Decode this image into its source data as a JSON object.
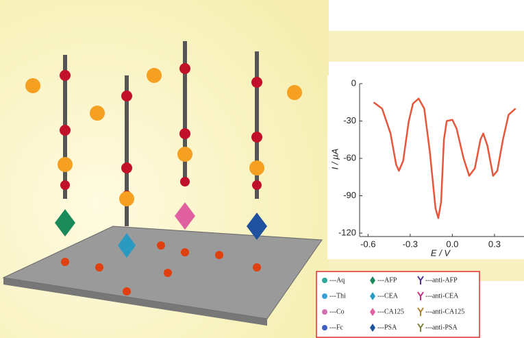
{
  "chart_data": {
    "type": "line",
    "x_label": "E / V",
    "y_label": "I / µA",
    "x": [
      -0.56,
      -0.5,
      -0.44,
      -0.4,
      -0.38,
      -0.35,
      -0.31,
      -0.28,
      -0.24,
      -0.2,
      -0.16,
      -0.12,
      -0.1,
      -0.08,
      -0.06,
      -0.04,
      0.0,
      0.03,
      0.08,
      0.12,
      0.16,
      0.2,
      0.22,
      0.25,
      0.29,
      0.32,
      0.36,
      0.4,
      0.45
    ],
    "values": [
      -15,
      -20,
      -40,
      -65,
      -70,
      -62,
      -30,
      -16,
      -12,
      -20,
      -55,
      -100,
      -108,
      -95,
      -45,
      -30,
      -29,
      -36,
      -60,
      -74,
      -68,
      -45,
      -40,
      -50,
      -74,
      -70,
      -45,
      -25,
      -20
    ],
    "color": "#e8553a",
    "xlim": [
      -0.66,
      0.51
    ],
    "xticks": [
      -0.6,
      -0.3,
      {
        "value": 0,
        "label": "0.0"
      },
      0.3
    ],
    "ylim": [
      -120,
      0
    ],
    "yticks": [
      0,
      -30,
      -60,
      -90,
      -120
    ]
  },
  "legend": {
    "items": [
      "---Aq",
      "---Thi",
      "---Co",
      "---Fc",
      "---AFP",
      "---CEA",
      "---CA125",
      "---PSA",
      "---anti-AFP",
      "---anti-CEA",
      "---anti-CA125",
      "---anti-PSA"
    ],
    "colors": [
      "#2fa89a",
      "#3a9fd0",
      "#d070b0",
      "#4060c0",
      "#1a8a5a",
      "#2a9ac0",
      "#e060a0",
      "#2050a0",
      "#503090",
      "#c03080",
      "#b08030",
      "#808040"
    ]
  }
}
